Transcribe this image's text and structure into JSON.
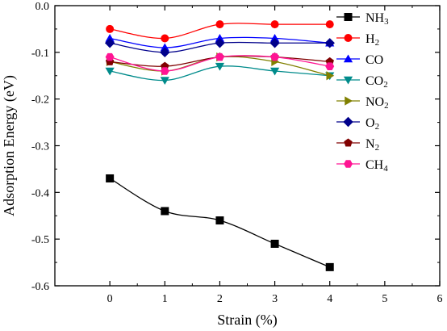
{
  "chart_data": {
    "type": "line",
    "xlabel": "Strain (%)",
    "ylabel": "Adsorption Energy (eV)",
    "xlim": [
      -1,
      6
    ],
    "ylim": [
      -0.6,
      0.0
    ],
    "xticks": [
      0,
      1,
      2,
      3,
      4,
      5,
      6
    ],
    "yticks": [
      0.0,
      -0.1,
      -0.2,
      -0.3,
      -0.4,
      -0.5,
      -0.6
    ],
    "xtick_labels": [
      "0",
      "1",
      "2",
      "3",
      "4",
      "5",
      "6"
    ],
    "ytick_labels": [
      "0.0",
      "-0.1",
      "-0.2",
      "-0.3",
      "-0.4",
      "-0.5",
      "-0.6"
    ],
    "grid": false,
    "legend_position": "top-right",
    "x": [
      0,
      1,
      2,
      3,
      4
    ],
    "series": [
      {
        "base": "NH",
        "sub": "3",
        "marker": "square",
        "color": "#000000",
        "values": [
          -0.37,
          -0.44,
          -0.46,
          -0.51,
          -0.56
        ]
      },
      {
        "base": "H",
        "sub": "2",
        "marker": "circle",
        "color": "#ff0000",
        "values": [
          -0.05,
          -0.07,
          -0.04,
          -0.04,
          -0.04
        ]
      },
      {
        "base": "CO",
        "sub": "",
        "marker": "triangle-up",
        "color": "#0000ff",
        "values": [
          -0.07,
          -0.09,
          -0.07,
          -0.07,
          -0.08
        ]
      },
      {
        "base": "CO",
        "sub": "2",
        "marker": "triangle-down",
        "color": "#008b8b",
        "values": [
          -0.14,
          -0.16,
          -0.13,
          -0.14,
          -0.15
        ]
      },
      {
        "base": "NO",
        "sub": "2",
        "marker": "triangle-right",
        "color": "#808000",
        "values": [
          -0.12,
          -0.14,
          -0.11,
          -0.12,
          -0.15
        ]
      },
      {
        "base": "O",
        "sub": "2",
        "marker": "diamond",
        "color": "#00008b",
        "values": [
          -0.08,
          -0.1,
          -0.08,
          -0.08,
          -0.08
        ]
      },
      {
        "base": "N",
        "sub": "2",
        "marker": "pentagon",
        "color": "#800000",
        "values": [
          -0.12,
          -0.13,
          -0.11,
          -0.11,
          -0.12
        ]
      },
      {
        "base": "CH",
        "sub": "4",
        "marker": "hexagon",
        "color": "#ff1493",
        "values": [
          -0.11,
          -0.14,
          -0.11,
          -0.11,
          -0.13
        ]
      }
    ]
  }
}
